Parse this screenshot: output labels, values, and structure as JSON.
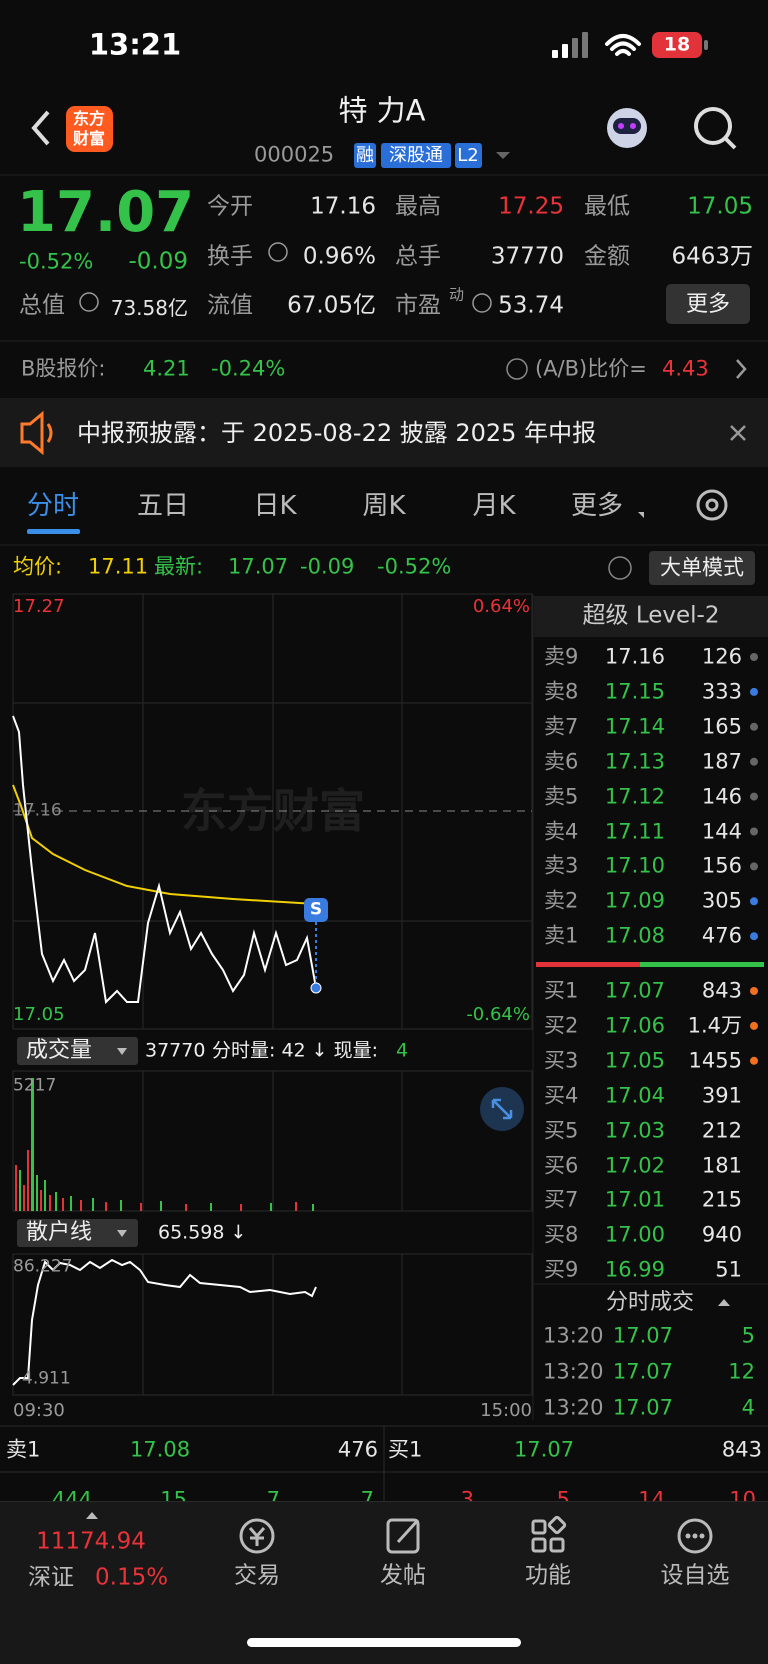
{
  "status": {
    "time": "13:21",
    "battery": "18"
  },
  "header": {
    "logo": [
      "东方",
      "财富"
    ],
    "title": "特 力A",
    "code": "000025",
    "tags": [
      "融",
      "深股通",
      "L2"
    ]
  },
  "quote": {
    "price": "17.07",
    "change_pct": "-0.52%",
    "change": "-0.09",
    "open": {
      "label": "今开",
      "value": "17.16"
    },
    "high": {
      "label": "最高",
      "value": "17.25"
    },
    "low": {
      "label": "最低",
      "value": "17.05"
    },
    "turnover": {
      "label": "换手",
      "value": "0.96%"
    },
    "volume": {
      "label": "总手",
      "value": "37770"
    },
    "amount": {
      "label": "金额",
      "value": "6463万"
    },
    "market_cap": {
      "label": "总值",
      "value": "73.58亿"
    },
    "float_cap": {
      "label": "流值",
      "value": "67.05亿"
    },
    "pe": {
      "label": "市盈",
      "sup": "动",
      "value": "53.74"
    },
    "more": "更多"
  },
  "b_share": {
    "label": "B股报价:",
    "price": "4.21",
    "pct": "-0.24%",
    "ratio_label": "(A/B)比价=",
    "ratio": "4.43"
  },
  "notice": "中报预披露：于 2025-08-22 披露 2025 年中报",
  "tabs": [
    "分时",
    "五日",
    "日K",
    "周K",
    "月K",
    "更多"
  ],
  "info": {
    "avg_label": "均价:",
    "avg": "17.11",
    "latest_label": "最新:",
    "latest": "17.07",
    "change": "-0.09",
    "pct": "-0.52%",
    "mode": "大单模式"
  },
  "chart": {
    "watermark": "东方财富",
    "price_top": "17.27",
    "price_ref": "17.16",
    "price_bottom": "17.05",
    "pct_top": "0.64%",
    "pct_bottom": "-0.64%",
    "marker": "S",
    "volume": {
      "label": "成交量",
      "total": "37770",
      "sub": "分时量: 42 ↓ 现量:",
      "now": "4",
      "max": "5217"
    },
    "retail": {
      "label": "散户线",
      "value": "65.598 ↓",
      "top": "86.227",
      "bottom": "4.911"
    },
    "time_start": "09:30",
    "time_end": "15:00"
  },
  "level2": {
    "title": "超级 Level-2",
    "sells": [
      {
        "label": "卖9",
        "price": "17.16",
        "vol": "126",
        "color": "#e6e6e6",
        "dot": "#666"
      },
      {
        "label": "卖8",
        "price": "17.15",
        "vol": "333",
        "color": "#34c24a",
        "dot": "#3a7be0"
      },
      {
        "label": "卖7",
        "price": "17.14",
        "vol": "165",
        "color": "#34c24a",
        "dot": "#666"
      },
      {
        "label": "卖6",
        "price": "17.13",
        "vol": "187",
        "color": "#34c24a",
        "dot": "#666"
      },
      {
        "label": "卖5",
        "price": "17.12",
        "vol": "146",
        "color": "#34c24a",
        "dot": "#666"
      },
      {
        "label": "卖4",
        "price": "17.11",
        "vol": "144",
        "color": "#34c24a",
        "dot": "#666"
      },
      {
        "label": "卖3",
        "price": "17.10",
        "vol": "156",
        "color": "#34c24a",
        "dot": "#666"
      },
      {
        "label": "卖2",
        "price": "17.09",
        "vol": "305",
        "color": "#34c24a",
        "dot": "#3a7be0"
      },
      {
        "label": "卖1",
        "price": "17.08",
        "vol": "476",
        "color": "#34c24a",
        "dot": "#3a7be0"
      }
    ],
    "buys": [
      {
        "label": "买1",
        "price": "17.07",
        "vol": "843",
        "color": "#34c24a",
        "dot": "#f07020"
      },
      {
        "label": "买2",
        "price": "17.06",
        "vol": "1.4万",
        "color": "#34c24a",
        "dot": "#f07020"
      },
      {
        "label": "买3",
        "price": "17.05",
        "vol": "1455",
        "color": "#34c24a",
        "dot": "#f07020"
      },
      {
        "label": "买4",
        "price": "17.04",
        "vol": "391",
        "color": "#34c24a",
        "dot": null
      },
      {
        "label": "买5",
        "price": "17.03",
        "vol": "212",
        "color": "#34c24a",
        "dot": null
      },
      {
        "label": "买6",
        "price": "17.02",
        "vol": "181",
        "color": "#34c24a",
        "dot": null
      },
      {
        "label": "买7",
        "price": "17.01",
        "vol": "215",
        "color": "#34c24a",
        "dot": null
      },
      {
        "label": "买8",
        "price": "17.00",
        "vol": "940",
        "color": "#34c24a",
        "dot": null
      },
      {
        "label": "买9",
        "price": "16.99",
        "vol": "51",
        "color": "#34c24a",
        "dot": null
      }
    ],
    "trades_title": "分时成交",
    "trades": [
      {
        "time": "13:20",
        "price": "17.07",
        "vol": "5"
      },
      {
        "time": "13:20",
        "price": "17.07",
        "vol": "12"
      },
      {
        "time": "13:20",
        "price": "17.07",
        "vol": "4"
      }
    ]
  },
  "bottom_quote": {
    "sell": {
      "label": "卖1",
      "price": "17.08",
      "vol": "476"
    },
    "buy": {
      "label": "买1",
      "price": "17.07",
      "vol": "843"
    },
    "sell_counts": [
      "444",
      "15",
      "7",
      "7"
    ],
    "buy_counts": [
      "3",
      "5",
      "14",
      "10"
    ]
  },
  "nav": {
    "index_value": "11174.94",
    "index_name": "深证",
    "index_pct": "0.15%",
    "items": [
      "交易",
      "发帖",
      "功能",
      "设自选"
    ]
  }
}
